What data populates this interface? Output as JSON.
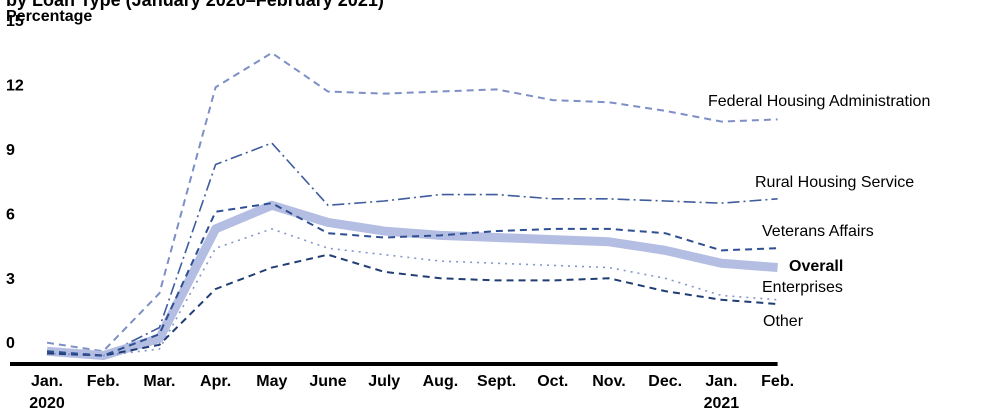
{
  "chart_data": {
    "type": "line",
    "title": "by Loan Type (January 2020–February 2021)",
    "y_label": "Percentage",
    "categories": [
      "Jan.",
      "Feb.",
      "Mar.",
      "Apr.",
      "May",
      "June",
      "July",
      "Aug.",
      "Sept.",
      "Oct.",
      "Nov.",
      "Dec.",
      "Jan.",
      "Feb."
    ],
    "years": [
      "2020",
      null,
      null,
      null,
      null,
      null,
      null,
      null,
      null,
      null,
      null,
      null,
      "2021",
      null
    ],
    "ylim": [
      0,
      15
    ],
    "yticks": [
      0,
      3,
      6,
      9,
      12,
      15
    ],
    "grid": false,
    "series": [
      {
        "name": "Federal Housing Administration",
        "color": "#7d8fc6",
        "style": "dashed",
        "values": [
          0.9,
          0.5,
          3.2,
          12.8,
          14.4,
          12.6,
          12.5,
          12.6,
          12.7,
          12.2,
          12.1,
          11.7,
          11.2,
          11.3
        ]
      },
      {
        "name": "Rural Housing Service",
        "color": "#3f5d9e",
        "style": "dash-dot",
        "values": [
          0.5,
          0.3,
          1.6,
          9.2,
          10.2,
          7.3,
          7.5,
          7.8,
          7.8,
          7.6,
          7.6,
          7.5,
          7.4,
          7.6
        ]
      },
      {
        "name": "Veterans Affairs",
        "color": "#2e4f92",
        "style": "dashed",
        "values": [
          0.5,
          0.3,
          1.3,
          7.0,
          7.4,
          6.0,
          5.8,
          5.9,
          6.1,
          6.2,
          6.2,
          6.0,
          5.2,
          5.3
        ]
      },
      {
        "name": "Overall",
        "color": "#b4bde2",
        "style": "thick",
        "values": [
          0.5,
          0.3,
          1.1,
          6.2,
          7.3,
          6.5,
          6.1,
          5.9,
          5.8,
          5.7,
          5.6,
          5.2,
          4.6,
          4.4
        ]
      },
      {
        "name": "Enterprises",
        "color": "#8496cc",
        "style": "dotted",
        "values": [
          0.4,
          0.3,
          0.6,
          5.3,
          6.2,
          5.3,
          5.0,
          4.7,
          4.6,
          4.5,
          4.4,
          3.9,
          3.1,
          2.9
        ]
      },
      {
        "name": "Other",
        "color": "#203d74",
        "style": "dashed",
        "values": [
          0.4,
          0.3,
          0.8,
          3.4,
          4.4,
          5.0,
          4.2,
          3.9,
          3.8,
          3.8,
          3.9,
          3.3,
          2.9,
          2.7
        ]
      }
    ]
  }
}
